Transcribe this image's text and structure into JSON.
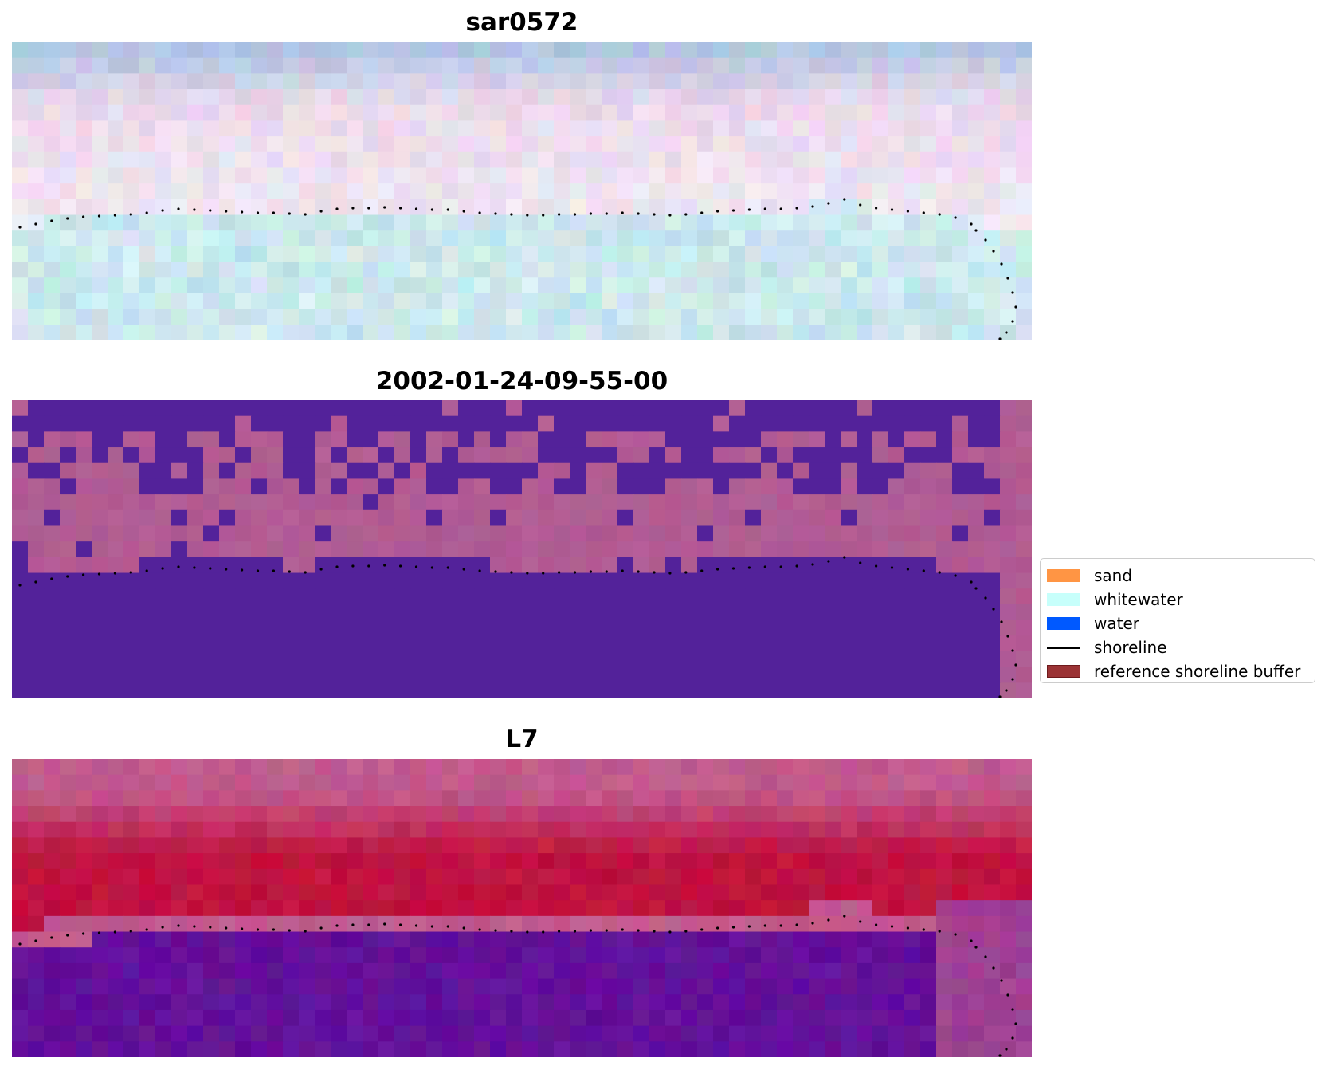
{
  "panels": [
    {
      "id": "sar",
      "title": "sar0572"
    },
    {
      "id": "classified",
      "title": "2002-01-24-09-55-00"
    },
    {
      "id": "l7",
      "title": "L7"
    }
  ],
  "legend": {
    "items": [
      {
        "label": "sand",
        "kind": "patch",
        "color": "#ff9544"
      },
      {
        "label": "whitewater",
        "kind": "patch",
        "color": "#c7fffb"
      },
      {
        "label": "water",
        "kind": "patch",
        "color": "#0059ff"
      },
      {
        "label": "shoreline",
        "kind": "line",
        "color": "#000000"
      },
      {
        "label": "reference shoreline buffer",
        "kind": "patch",
        "color": "#9b3335",
        "edge": "#6e1a1c"
      }
    ]
  },
  "colors": {
    "classified_water": "#53229a",
    "classified_land": "#b15c93",
    "l7_red": "#c0123f",
    "l7_pink": "#c15b8e",
    "l7_purple": "#63109a",
    "shoreline": "#000000"
  }
}
